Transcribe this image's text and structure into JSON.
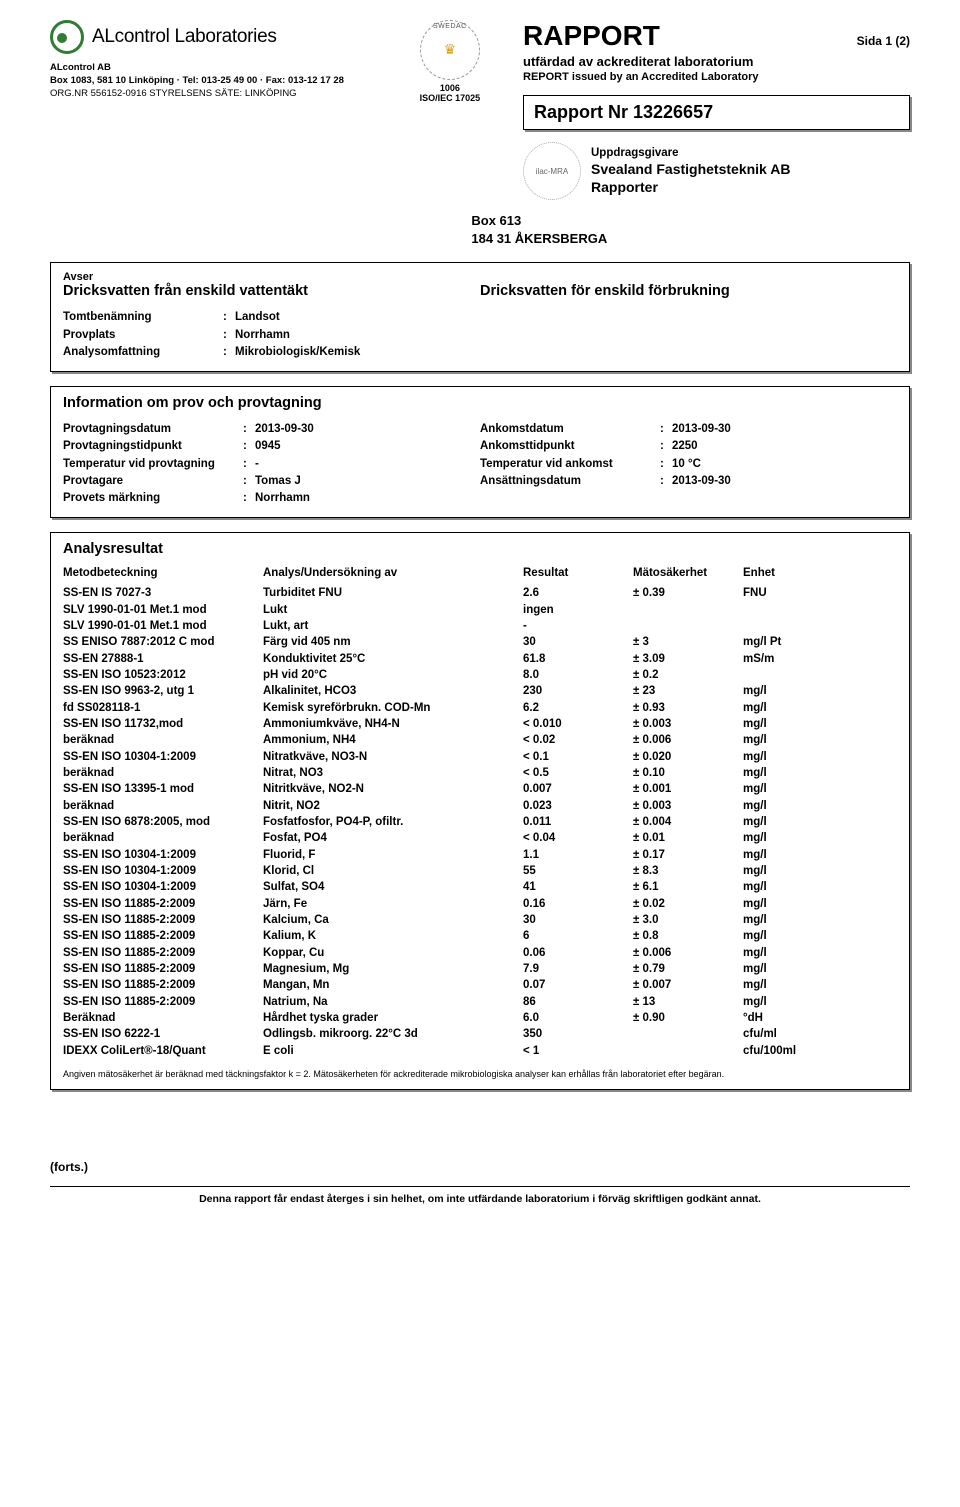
{
  "brand": "ALcontrol Laboratories",
  "company": "ALcontrol AB",
  "address_line": "Box 1083, 581 10  Linköping  ·  Tel: 013-25 49 00  ·  Fax: 013-12 17 28",
  "org_line": "ORG.NR 556152-0916  STYRELSENS SÄTE: LINKÖPING",
  "accred_num": "1006",
  "accred_std": "ISO/IEC 17025",
  "rapport": {
    "title": "RAPPORT",
    "sida": "Sida  1 (2)",
    "sub1": "utfärdad av ackrediterat laboratorium",
    "sub2": "REPORT issued by an Accredited Laboratory",
    "nr_label": "Rapport Nr 13226657"
  },
  "ilac_label": "ilac-MRA",
  "uppdrags": {
    "hdr": "Uppdragsgivare",
    "name": "Svealand Fastighetsteknik AB",
    "dept": "Rapporter",
    "box": "Box 613",
    "city": "184 31  ÅKERSBERGA"
  },
  "avser": {
    "label": "Avser",
    "left": "Dricksvatten från enskild vattentäkt",
    "right": "Dricksvatten för enskild förbrukning",
    "rows": [
      {
        "k": "Tomtbenämning",
        "v": "Landsot"
      },
      {
        "k": "Provplats",
        "v": "Norrhamn"
      },
      {
        "k": "Analysomfattning",
        "v": "Mikrobiologisk/Kemisk"
      }
    ]
  },
  "info": {
    "title": "Information om prov och provtagning",
    "left": [
      {
        "k": "Provtagningsdatum",
        "v": "2013-09-30"
      },
      {
        "k": "Provtagningstidpunkt",
        "v": "0945"
      },
      {
        "k": "Temperatur vid provtagning",
        "v": "-"
      },
      {
        "k": "Provtagare",
        "v": "Tomas J"
      },
      {
        "k": "Provets märkning",
        "v": "Norrhamn"
      }
    ],
    "right": [
      {
        "k": "Ankomstdatum",
        "v": "2013-09-30"
      },
      {
        "k": "Ankomsttidpunkt",
        "v": "2250"
      },
      {
        "k": "Temperatur vid ankomst",
        "v": "10 °C"
      },
      {
        "k": "Ansättningsdatum",
        "v": "2013-09-30"
      }
    ]
  },
  "analys": {
    "title": "Analysresultat",
    "headers": {
      "method": "Metodbeteckning",
      "analys": "Analys/Undersökning av",
      "result": "Resultat",
      "uncert": "Mätosäkerhet",
      "unit": "Enhet"
    },
    "rows": [
      {
        "m": "SS-EN IS 7027-3",
        "a": "Turbiditet FNU",
        "r": "2.6",
        "u": "± 0.39",
        "e": "FNU"
      },
      {
        "m": "SLV 1990-01-01 Met.1 mod",
        "a": "Lukt",
        "r": "ingen",
        "u": "",
        "e": ""
      },
      {
        "m": "SLV 1990-01-01 Met.1 mod",
        "a": "Lukt, art",
        "r": "-",
        "u": "",
        "e": ""
      },
      {
        "m": "SS ENISO 7887:2012 C mod",
        "a": "Färg vid 405 nm",
        "r": "30",
        "u": "± 3",
        "e": "mg/l Pt"
      },
      {
        "m": "SS-EN 27888-1",
        "a": "Konduktivitet 25°C",
        "r": "61.8",
        "u": "± 3.09",
        "e": "mS/m"
      },
      {
        "m": "SS-EN ISO 10523:2012",
        "a": "pH vid 20°C",
        "r": "8.0",
        "u": "± 0.2",
        "e": ""
      },
      {
        "m": "SS-EN ISO 9963-2, utg 1",
        "a": "Alkalinitet, HCO3",
        "r": "230",
        "u": "± 23",
        "e": "mg/l"
      },
      {
        "m": "fd SS028118-1",
        "a": "Kemisk syreförbrukn. COD-Mn",
        "r": "6.2",
        "u": "± 0.93",
        "e": "mg/l"
      },
      {
        "m": "SS-EN ISO 11732,mod",
        "a": "Ammoniumkväve, NH4-N",
        "r": "< 0.010",
        "u": "± 0.003",
        "e": "mg/l"
      },
      {
        "m": "beräknad",
        "a": "Ammonium, NH4",
        "r": "< 0.02",
        "u": "± 0.006",
        "e": "mg/l"
      },
      {
        "m": "SS-EN ISO 10304-1:2009",
        "a": "Nitratkväve, NO3-N",
        "r": "< 0.1",
        "u": "± 0.020",
        "e": "mg/l"
      },
      {
        "m": "beräknad",
        "a": "Nitrat, NO3",
        "r": "< 0.5",
        "u": "± 0.10",
        "e": "mg/l"
      },
      {
        "m": "SS-EN ISO 13395-1 mod",
        "a": "Nitritkväve, NO2-N",
        "r": "0.007",
        "u": "± 0.001",
        "e": "mg/l"
      },
      {
        "m": "beräknad",
        "a": "Nitrit, NO2",
        "r": "0.023",
        "u": "± 0.003",
        "e": "mg/l"
      },
      {
        "m": "SS-EN ISO 6878:2005, mod",
        "a": "Fosfatfosfor, PO4-P, ofiltr.",
        "r": "0.011",
        "u": "± 0.004",
        "e": "mg/l"
      },
      {
        "m": "beräknad",
        "a": "Fosfat, PO4",
        "r": "< 0.04",
        "u": "± 0.01",
        "e": "mg/l"
      },
      {
        "m": "SS-EN ISO 10304-1:2009",
        "a": "Fluorid, F",
        "r": "1.1",
        "u": "± 0.17",
        "e": "mg/l"
      },
      {
        "m": "SS-EN ISO 10304-1:2009",
        "a": "Klorid, Cl",
        "r": "55",
        "u": "± 8.3",
        "e": "mg/l"
      },
      {
        "m": "SS-EN ISO 10304-1:2009",
        "a": "Sulfat, SO4",
        "r": "41",
        "u": "± 6.1",
        "e": "mg/l"
      },
      {
        "m": "SS-EN ISO 11885-2:2009",
        "a": "Järn, Fe",
        "r": "0.16",
        "u": "± 0.02",
        "e": "mg/l"
      },
      {
        "m": "SS-EN ISO 11885-2:2009",
        "a": "Kalcium, Ca",
        "r": "30",
        "u": "± 3.0",
        "e": "mg/l"
      },
      {
        "m": "SS-EN ISO 11885-2:2009",
        "a": "Kalium, K",
        "r": "6",
        "u": "± 0.8",
        "e": "mg/l"
      },
      {
        "m": "SS-EN ISO 11885-2:2009",
        "a": "Koppar, Cu",
        "r": "0.06",
        "u": "± 0.006",
        "e": "mg/l"
      },
      {
        "m": "SS-EN ISO 11885-2:2009",
        "a": "Magnesium, Mg",
        "r": "7.9",
        "u": "± 0.79",
        "e": "mg/l"
      },
      {
        "m": "SS-EN ISO 11885-2:2009",
        "a": "Mangan, Mn",
        "r": "0.07",
        "u": "± 0.007",
        "e": "mg/l"
      },
      {
        "m": "SS-EN ISO 11885-2:2009",
        "a": "Natrium, Na",
        "r": "86",
        "u": "± 13",
        "e": "mg/l"
      },
      {
        "m": "Beräknad",
        "a": "Hårdhet tyska grader",
        "r": "6.0",
        "u": "± 0.90",
        "e": "°dH"
      },
      {
        "m": "SS-EN ISO 6222-1",
        "a": "Odlingsb. mikroorg. 22°C 3d",
        "r": "350",
        "u": "",
        "e": "cfu/ml"
      },
      {
        "m": "IDEXX ColiLert®-18/Quant",
        "a": "E coli",
        "r": "< 1",
        "u": "",
        "e": "cfu/100ml"
      }
    ],
    "footnote": "Angiven mätosäkerhet är beräknad med täckningsfaktor k = 2. Mätosäkerheten för ackrediterade mikrobiologiska analyser kan erhållas från laboratoriet efter begäran."
  },
  "forts": "(forts.)",
  "bottom": "Denna rapport får endast återges i sin helhet, om inte utfärdande laboratorium i förväg skriftligen godkänt annat."
}
